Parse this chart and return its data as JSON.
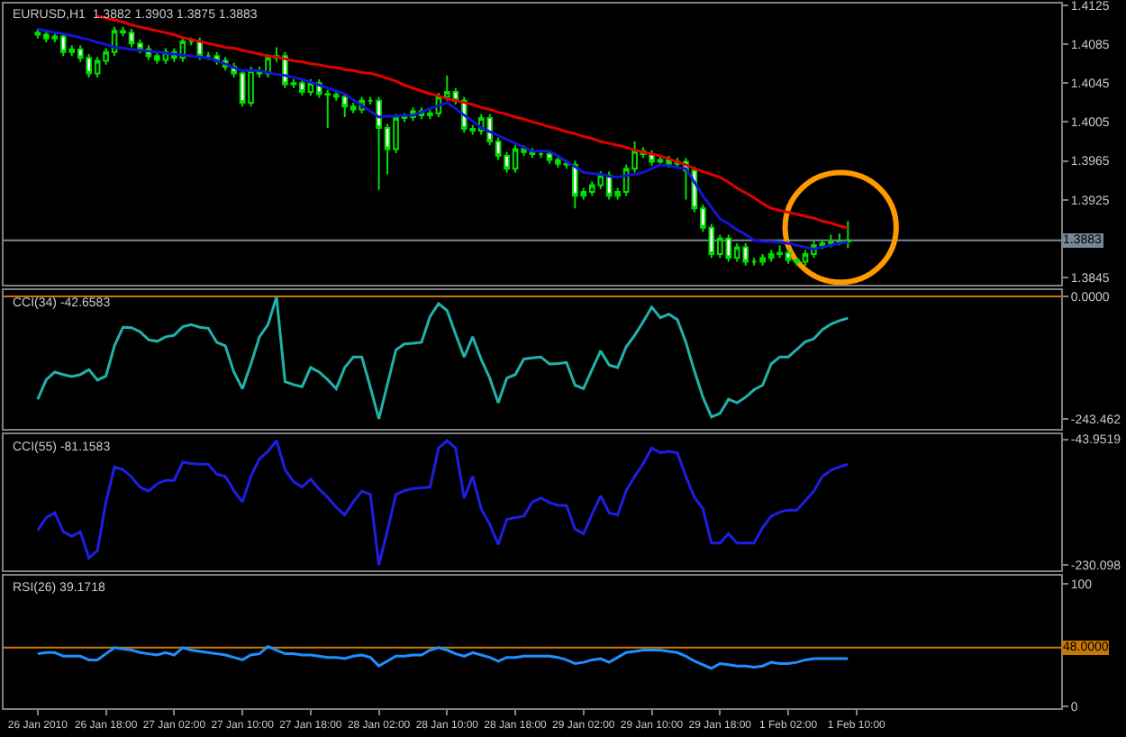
{
  "chart_data": [
    {
      "type": "candlestick",
      "title": "EURUSD,H1  1.3882 1.3903 1.3875 1.3883",
      "color": "#00e000",
      "categories": [
        null,
        null,
        null,
        null,
        null,
        null,
        null,
        null,
        null,
        null,
        null,
        null,
        null,
        null,
        null,
        null,
        null,
        null,
        null,
        null,
        null,
        null,
        null,
        null,
        null,
        null,
        null,
        null,
        null,
        null,
        null,
        null,
        null,
        null,
        null,
        null,
        null,
        null,
        null,
        null,
        null,
        null,
        null,
        null,
        null,
        null,
        null,
        null,
        null,
        null,
        null,
        null,
        null,
        null,
        null,
        null,
        null,
        null,
        null,
        null,
        null,
        null,
        null,
        null,
        null,
        null,
        null,
        null,
        null,
        null,
        null,
        null,
        null,
        null,
        null,
        null,
        null,
        null,
        null,
        null,
        null,
        null,
        null,
        null,
        null,
        null,
        null,
        null,
        null,
        null,
        null,
        null,
        null,
        null,
        null,
        null,
        null,
        null,
        null,
        null,
        null,
        null,
        null,
        null,
        null,
        null,
        null,
        null,
        null,
        null,
        null,
        null,
        null,
        null,
        null,
        null,
        null,
        null,
        null,
        null,
        null
      ],
      "ohlc": [
        [
          1.4097,
          1.4101,
          1.4091,
          1.4095
        ],
        [
          1.4095,
          1.4099,
          1.4087,
          1.4091
        ],
        [
          1.4091,
          1.4097,
          1.4087,
          1.4093
        ],
        [
          1.4093,
          1.4097,
          1.4073,
          1.4077
        ],
        [
          1.4077,
          1.4084,
          1.4073,
          1.408
        ],
        [
          1.408,
          1.4084,
          1.4067,
          1.4071
        ],
        [
          1.4071,
          1.4075,
          1.4051,
          1.4055
        ],
        [
          1.4055,
          1.4072,
          1.4051,
          1.4068
        ],
        [
          1.4068,
          1.4081,
          1.4064,
          1.4077
        ],
        [
          1.4077,
          1.4103,
          1.4073,
          1.4099
        ],
        [
          1.4099,
          1.4103,
          1.4093,
          1.4097
        ],
        [
          1.4097,
          1.4101,
          1.4082,
          1.4086
        ],
        [
          1.4086,
          1.409,
          1.4076,
          1.408
        ],
        [
          1.408,
          1.4084,
          1.4069,
          1.4073
        ],
        [
          1.4073,
          1.4077,
          1.4065,
          1.4069
        ],
        [
          1.4069,
          1.4081,
          1.4065,
          1.4077
        ],
        [
          1.4077,
          1.4081,
          1.4067,
          1.4071
        ],
        [
          1.4071,
          1.4092,
          1.4067,
          1.4088
        ],
        [
          1.4088,
          1.4092,
          1.4084,
          1.4088
        ],
        [
          1.4088,
          1.4092,
          1.4069,
          1.4073
        ],
        [
          1.4073,
          1.4077,
          1.4069,
          1.4073
        ],
        [
          1.4073,
          1.4077,
          1.4064,
          1.4068
        ],
        [
          1.4068,
          1.4072,
          1.4058,
          1.4062
        ],
        [
          1.4062,
          1.4066,
          1.4051,
          1.4055
        ],
        [
          1.4055,
          1.4059,
          1.4021,
          1.4025
        ],
        [
          1.4025,
          1.4062,
          1.4021,
          1.4058
        ],
        [
          1.4058,
          1.4062,
          1.4051,
          1.4055
        ],
        [
          1.4055,
          1.4075,
          1.4051,
          1.4071
        ],
        [
          1.4071,
          1.4082,
          1.4067,
          1.4073
        ],
        [
          1.4073,
          1.4077,
          1.404,
          1.4044
        ],
        [
          1.4044,
          1.4049,
          1.404,
          1.4045
        ],
        [
          1.4045,
          1.4049,
          1.4032,
          1.4036
        ],
        [
          1.4036,
          1.4049,
          1.4032,
          1.4045
        ],
        [
          1.4045,
          1.4049,
          1.403,
          1.4034
        ],
        [
          1.4034,
          1.4038,
          1.3999,
          1.4033
        ],
        [
          1.4033,
          1.4037,
          1.4027,
          1.4031
        ],
        [
          1.4031,
          1.4035,
          1.401,
          1.4021
        ],
        [
          1.4021,
          1.4025,
          1.4014,
          1.4018
        ],
        [
          1.4018,
          1.4031,
          1.4014,
          1.4027
        ],
        [
          1.4027,
          1.4031,
          1.4023,
          1.4027
        ],
        [
          1.4027,
          1.4031,
          1.3935,
          1.3999
        ],
        [
          1.3999,
          1.4003,
          1.3951,
          1.3977
        ],
        [
          1.3977,
          1.4013,
          1.3973,
          1.4009
        ],
        [
          1.4009,
          1.4014,
          1.4005,
          1.401
        ],
        [
          1.401,
          1.402,
          1.4006,
          1.4016
        ],
        [
          1.4016,
          1.402,
          1.4008,
          1.4012
        ],
        [
          1.4012,
          1.4018,
          1.4008,
          1.4014
        ],
        [
          1.4014,
          1.4035,
          1.401,
          1.4031
        ],
        [
          1.4031,
          1.4053,
          1.4027,
          1.4036
        ],
        [
          1.4036,
          1.404,
          1.4023,
          1.4027
        ],
        [
          1.4027,
          1.4031,
          1.3994,
          1.3998
        ],
        [
          1.3998,
          1.4002,
          1.3992,
          1.3996
        ],
        [
          1.3996,
          1.4013,
          1.3992,
          1.4009
        ],
        [
          1.4009,
          1.4013,
          1.3981,
          1.3985
        ],
        [
          1.3985,
          1.3989,
          1.3966,
          1.397
        ],
        [
          1.397,
          1.3974,
          1.3953,
          1.3957
        ],
        [
          1.3957,
          1.3981,
          1.3953,
          1.3977
        ],
        [
          1.3977,
          1.3981,
          1.397,
          1.3974
        ],
        [
          1.3974,
          1.3978,
          1.3968,
          1.3972
        ],
        [
          1.3972,
          1.3976,
          1.3968,
          1.3972
        ],
        [
          1.3972,
          1.3976,
          1.3962,
          1.3966
        ],
        [
          1.3966,
          1.397,
          1.3958,
          1.3962
        ],
        [
          1.3962,
          1.3966,
          1.3957,
          1.3961
        ],
        [
          1.3961,
          1.3965,
          1.3916,
          1.3929
        ],
        [
          1.3929,
          1.3937,
          1.3925,
          1.3933
        ],
        [
          1.3933,
          1.3944,
          1.3929,
          1.394
        ],
        [
          1.394,
          1.3954,
          1.3936,
          1.395
        ],
        [
          1.395,
          1.3954,
          1.3925,
          1.3929
        ],
        [
          1.3929,
          1.3937,
          1.3925,
          1.3933
        ],
        [
          1.3933,
          1.3961,
          1.3929,
          1.3957
        ],
        [
          1.3957,
          1.3985,
          1.3953,
          1.3975
        ],
        [
          1.3975,
          1.3979,
          1.3968,
          1.3972
        ],
        [
          1.3972,
          1.3976,
          1.396,
          1.3964
        ],
        [
          1.3964,
          1.397,
          1.396,
          1.3966
        ],
        [
          1.3966,
          1.397,
          1.3958,
          1.3962
        ],
        [
          1.3962,
          1.3968,
          1.3958,
          1.3964
        ],
        [
          1.3964,
          1.3968,
          1.3925,
          1.3955
        ],
        [
          1.3955,
          1.3959,
          1.3912,
          1.3916
        ],
        [
          1.3916,
          1.392,
          1.3892,
          1.3896
        ],
        [
          1.3896,
          1.39,
          1.3865,
          1.3869
        ],
        [
          1.3869,
          1.3889,
          1.3865,
          1.3885
        ],
        [
          1.3885,
          1.3889,
          1.3861,
          1.3865
        ],
        [
          1.3865,
          1.388,
          1.3861,
          1.3876
        ],
        [
          1.3876,
          1.388,
          1.3857,
          1.3861
        ],
        [
          1.3861,
          1.3865,
          1.3857,
          1.3861
        ],
        [
          1.3861,
          1.3869,
          1.3857,
          1.3865
        ],
        [
          1.3865,
          1.3873,
          1.3861,
          1.3869
        ],
        [
          1.3869,
          1.3878,
          1.3865,
          1.387
        ],
        [
          1.387,
          1.3874,
          1.3859,
          1.3863
        ],
        [
          1.3863,
          1.3865,
          1.3857,
          1.3861
        ],
        [
          1.3861,
          1.3873,
          1.3857,
          1.3869
        ],
        [
          1.3869,
          1.3882,
          1.3865,
          1.3878
        ],
        [
          1.3878,
          1.3884,
          1.3874,
          1.388
        ],
        [
          1.388,
          1.3889,
          1.3876,
          1.3881
        ],
        [
          1.3881,
          1.389,
          1.3878,
          1.3882
        ],
        [
          1.3882,
          1.3903,
          1.3875,
          1.3883
        ],
        null,
        null,
        null,
        null,
        null,
        null,
        null,
        null,
        null,
        null,
        null,
        null,
        null,
        null,
        null,
        null,
        null,
        null,
        null,
        null,
        null,
        null,
        null,
        null,
        null
      ],
      "series": [
        {
          "type": "line",
          "color": "#e00000",
          "values": [
            null,
            null,
            null,
            null,
            null,
            null,
            null,
            1.4114,
            1.4112,
            1.411,
            1.4108,
            1.4105,
            1.4103,
            1.4101,
            1.4099,
            1.4097,
            1.4095,
            1.4092,
            1.409,
            1.4088,
            1.4086,
            1.4084,
            1.4082,
            1.4081,
            1.4079,
            1.4077,
            1.4075,
            1.4073,
            1.4072,
            1.407,
            1.4068,
            1.4067,
            1.4065,
            1.4064,
            1.4062,
            1.4061,
            1.4059,
            1.4058,
            1.4056,
            1.4055,
            1.4053,
            1.405,
            1.4047,
            1.4043,
            1.404,
            1.4037,
            1.4034,
            1.4032,
            1.4029,
            1.4027,
            1.4025,
            1.4023,
            1.402,
            1.4018,
            1.4015,
            1.4013,
            1.401,
            1.4008,
            1.4005,
            1.4003,
            1.4,
            1.3998,
            1.3995,
            1.3993,
            1.399,
            1.3988,
            1.3985,
            1.3983,
            1.3981,
            1.3979,
            1.3976,
            1.3974,
            1.3972,
            1.397,
            1.3967,
            1.3964,
            1.3961,
            1.3957,
            1.3954,
            1.3951,
            1.3948,
            1.3943,
            1.3937,
            1.3932,
            1.3927,
            1.3921,
            1.3916,
            1.3914,
            1.3912,
            1.391,
            1.3908,
            1.3906,
            1.3903,
            1.3901,
            1.3898,
            1.3896,
            null,
            null,
            null,
            null,
            null,
            null,
            null,
            null,
            null,
            null,
            null,
            null,
            null,
            null,
            null,
            null,
            null,
            null,
            null,
            null,
            null,
            null,
            null,
            null,
            null
          ]
        },
        {
          "type": "line",
          "color": "#1414d2",
          "values": [
            1.4101,
            1.4099,
            1.4097,
            1.4096,
            1.4094,
            1.4092,
            1.409,
            1.4087,
            1.4085,
            1.4082,
            1.4081,
            1.408,
            1.4079,
            1.4078,
            1.4077,
            1.4076,
            1.4075,
            1.4074,
            1.4073,
            1.4072,
            1.4071,
            1.4068,
            1.4065,
            1.4061,
            1.4058,
            1.4058,
            1.4058,
            1.4056,
            1.4054,
            1.4053,
            1.4051,
            1.4049,
            1.4046,
            1.4043,
            1.404,
            1.4037,
            1.4034,
            1.4028,
            1.4022,
            1.4016,
            1.401,
            1.4011,
            1.4011,
            1.4012,
            1.4012,
            1.4015,
            1.4019,
            1.4022,
            1.4025,
            1.4019,
            1.4012,
            1.4006,
            1.3999,
            1.3995,
            1.3991,
            1.3987,
            1.3983,
            1.3979,
            1.3975,
            1.3975,
            1.3975,
            1.397,
            1.3964,
            1.3959,
            1.3953,
            1.3952,
            1.3951,
            1.3949,
            1.3948,
            1.395,
            1.3951,
            1.3953,
            1.3957,
            1.3961,
            1.396,
            1.3958,
            1.3957,
            1.3943,
            1.3929,
            1.3917,
            1.3905,
            1.39,
            1.3894,
            1.3889,
            1.3883,
            1.3882,
            1.3882,
            1.3881,
            1.388,
            1.3878,
            1.3876,
            1.3874,
            1.3876,
            1.3878,
            1.388,
            1.3881,
            null,
            null,
            null,
            null,
            null,
            null,
            null,
            null,
            null,
            null,
            null,
            null,
            null,
            null,
            null,
            null,
            null,
            null,
            null,
            null,
            null,
            null,
            null,
            null,
            null
          ]
        }
      ],
      "ylim": [
        1.3837,
        1.4127
      ],
      "yticks": [
        1.4125,
        1.4085,
        1.4045,
        1.4005,
        1.3965,
        1.3925,
        1.3845
      ],
      "ref_lines": [
        {
          "axis": "y",
          "value": 1.3883,
          "label": "1.3883",
          "color": "#778899"
        }
      ],
      "tick_labels": "y",
      "grid": false
    },
    {
      "type": "line",
      "title": "CCI(34) -42.6583",
      "color": "#20b2aa",
      "categories": [
        null,
        null,
        null,
        null,
        null,
        null,
        null,
        null,
        null,
        null,
        null,
        null,
        null,
        null,
        null,
        null,
        null,
        null,
        null,
        null,
        null,
        null,
        null,
        null,
        null,
        null,
        null,
        null,
        null,
        null,
        null,
        null,
        null,
        null,
        null,
        null,
        null,
        null,
        null,
        null,
        null,
        null,
        null,
        null,
        null,
        null,
        null,
        null,
        null,
        null,
        null,
        null,
        null,
        null,
        null,
        null,
        null,
        null,
        null,
        null,
        null,
        null,
        null,
        null,
        null,
        null,
        null,
        null,
        null,
        null,
        null,
        null,
        null,
        null,
        null,
        null,
        null,
        null,
        null,
        null,
        null,
        null,
        null,
        null,
        null,
        null,
        null,
        null,
        null,
        null,
        null,
        null,
        null,
        null,
        null,
        null,
        null,
        null,
        null,
        null,
        null,
        null,
        null,
        null,
        null,
        null,
        null,
        null,
        null,
        null,
        null,
        null,
        null,
        null,
        null,
        null,
        null,
        null,
        null,
        null,
        null
      ],
      "values": [
        -204,
        -165,
        -150,
        -155,
        -159,
        -155,
        -145,
        -166,
        -158,
        -98,
        -61,
        -62,
        -70,
        -86,
        -89,
        -80,
        -77,
        -60,
        -56,
        -61,
        -63,
        -91,
        -98,
        -150,
        -183,
        -134,
        -80,
        -56,
        -1,
        -169,
        -175,
        -179,
        -141,
        -150,
        -165,
        -183,
        -141,
        -120,
        -120,
        -180,
        -243,
        -175,
        -106,
        -94,
        -93,
        -91,
        -40,
        -14,
        -28,
        -75,
        -120,
        -80,
        -125,
        -162,
        -211,
        -162,
        -155,
        -124,
        -122,
        -120,
        -134,
        -133,
        -131,
        -176,
        -183,
        -145,
        -108,
        -136,
        -141,
        -100,
        -77,
        -50,
        -21,
        -42,
        -35,
        -46,
        -91,
        -148,
        -200,
        -239,
        -232,
        -204,
        -211,
        -200,
        -185,
        -176,
        -134,
        -120,
        -120,
        -105,
        -90,
        -84,
        -66,
        -55,
        -48,
        -43,
        null,
        null,
        null,
        null,
        null,
        null,
        null,
        null,
        null,
        null,
        null,
        null,
        null,
        null,
        null,
        null,
        null,
        null,
        null,
        null,
        null,
        null,
        null,
        null,
        null
      ],
      "ylim": [
        -262,
        12
      ],
      "yticks": [
        {
          "value": 0,
          "label": "0.0000"
        },
        {
          "value": -243.462,
          "label": "-243.462"
        }
      ],
      "ref_lines": [
        {
          "axis": "y",
          "value": 0,
          "color": "#c87800"
        }
      ],
      "tick_labels": "y",
      "grid": false
    },
    {
      "type": "line",
      "title": "CCI(55) -81.1583",
      "color": "#1e1ee6",
      "categories": [
        null,
        null,
        null,
        null,
        null,
        null,
        null,
        null,
        null,
        null,
        null,
        null,
        null,
        null,
        null,
        null,
        null,
        null,
        null,
        null,
        null,
        null,
        null,
        null,
        null,
        null,
        null,
        null,
        null,
        null,
        null,
        null,
        null,
        null,
        null,
        null,
        null,
        null,
        null,
        null,
        null,
        null,
        null,
        null,
        null,
        null,
        null,
        null,
        null,
        null,
        null,
        null,
        null,
        null,
        null,
        null,
        null,
        null,
        null,
        null,
        null,
        null,
        null,
        null,
        null,
        null,
        null,
        null,
        null,
        null,
        null,
        null,
        null,
        null,
        null,
        null,
        null,
        null,
        null,
        null,
        null,
        null,
        null,
        null,
        null,
        null,
        null,
        null,
        null,
        null,
        null,
        null,
        null,
        null,
        null,
        null,
        null,
        null,
        null,
        null,
        null,
        null,
        null,
        null,
        null,
        null,
        null,
        null,
        null,
        null,
        null,
        null,
        null,
        null,
        null,
        null,
        null,
        null,
        null,
        null,
        null
      ],
      "values": [
        -179,
        -160,
        -153,
        -181,
        -188,
        -181,
        -220,
        -209,
        -137,
        -85,
        -89,
        -100,
        -115,
        -121,
        -110,
        -105,
        -105,
        -78,
        -80,
        -81,
        -81,
        -96,
        -99,
        -120,
        -137,
        -99,
        -73,
        -62,
        -46,
        -89,
        -107,
        -115,
        -103,
        -118,
        -130,
        -145,
        -156,
        -137,
        -121,
        -126,
        -230,
        -180,
        -126,
        -120,
        -117,
        -116,
        -115,
        -57,
        -46,
        -57,
        -131,
        -99,
        -147,
        -170,
        -200,
        -163,
        -160,
        -158,
        -137,
        -131,
        -138,
        -142,
        -142,
        -177,
        -184,
        -155,
        -128,
        -153,
        -156,
        -120,
        -99,
        -80,
        -57,
        -64,
        -62,
        -64,
        -99,
        -130,
        -147,
        -198,
        -198,
        -184,
        -198,
        -198,
        -198,
        -175,
        -158,
        -152,
        -149,
        -149,
        -135,
        -121,
        -99,
        -90,
        -85,
        -81,
        null,
        null,
        null,
        null,
        null,
        null,
        null,
        null,
        null,
        null,
        null,
        null,
        null,
        null,
        null,
        null,
        null,
        null,
        null,
        null,
        null,
        null,
        null,
        null,
        null
      ],
      "ylim": [
        -238,
        -36
      ],
      "yticks": [
        {
          "value": -43.9519,
          "label": "-43.9519"
        },
        {
          "value": -230.098,
          "label": "-230.098"
        }
      ],
      "tick_labels": "y",
      "grid": false
    },
    {
      "type": "line",
      "title": "RSI(26) 39.1718",
      "color": "#1e90ff",
      "categories": [
        "26 Jan 2010",
        null,
        null,
        null,
        null,
        null,
        null,
        null,
        "26 Jan 18:00",
        null,
        null,
        null,
        null,
        null,
        null,
        null,
        "27 Jan 02:00",
        null,
        null,
        null,
        null,
        null,
        null,
        null,
        "27 Jan 10:00",
        null,
        null,
        null,
        null,
        null,
        null,
        null,
        "27 Jan 18:00",
        null,
        null,
        null,
        null,
        null,
        null,
        null,
        "28 Jan 02:00",
        null,
        null,
        null,
        null,
        null,
        null,
        null,
        "28 Jan 10:00",
        null,
        null,
        null,
        null,
        null,
        null,
        null,
        "28 Jan 18:00",
        null,
        null,
        null,
        null,
        null,
        null,
        null,
        "29 Jan 02:00",
        null,
        null,
        null,
        null,
        null,
        null,
        null,
        "29 Jan 10:00",
        null,
        null,
        null,
        null,
        null,
        null,
        null,
        "29 Jan 18:00",
        null,
        null,
        null,
        null,
        null,
        null,
        null,
        "1 Feb 02:00",
        null,
        null,
        null,
        null,
        null,
        null,
        null,
        "1 Feb 10:00",
        null,
        null,
        null,
        null,
        null,
        null,
        null,
        null,
        null,
        null,
        null,
        null,
        null,
        null,
        null,
        null,
        null,
        null,
        null,
        null,
        null,
        null,
        null,
        null
      ],
      "values": [
        43,
        44,
        44,
        41,
        41,
        41,
        38,
        38,
        43,
        48,
        47,
        46,
        44,
        43,
        42,
        44,
        42,
        48,
        46,
        45,
        44,
        43,
        42,
        40,
        38,
        42,
        43,
        49,
        46,
        43,
        43,
        42,
        42,
        41,
        40,
        40,
        39,
        41,
        42,
        40,
        33,
        37,
        41,
        41,
        42,
        42,
        46,
        48,
        46,
        43,
        41,
        44,
        42,
        40,
        37,
        40,
        40,
        41,
        41,
        41,
        41,
        40,
        38,
        35,
        36,
        38,
        39,
        36,
        40,
        44,
        45,
        46,
        46,
        46,
        45,
        44,
        41,
        37,
        34,
        31,
        35,
        34,
        33,
        33,
        32,
        33,
        36,
        35,
        35,
        36,
        38,
        39,
        39,
        39,
        39,
        39,
        null,
        null,
        null,
        null,
        null,
        null,
        null,
        null,
        null,
        null,
        null,
        null,
        null,
        null,
        null,
        null,
        null,
        null,
        null,
        null,
        null,
        null,
        null,
        null,
        null
      ],
      "ylim": [
        -1.5,
        107
      ],
      "yticks": [
        100,
        0
      ],
      "ref_lines": [
        {
          "axis": "y",
          "value": 48,
          "label": "48.0000",
          "color": "#c87800"
        }
      ],
      "grid": false
    }
  ]
}
